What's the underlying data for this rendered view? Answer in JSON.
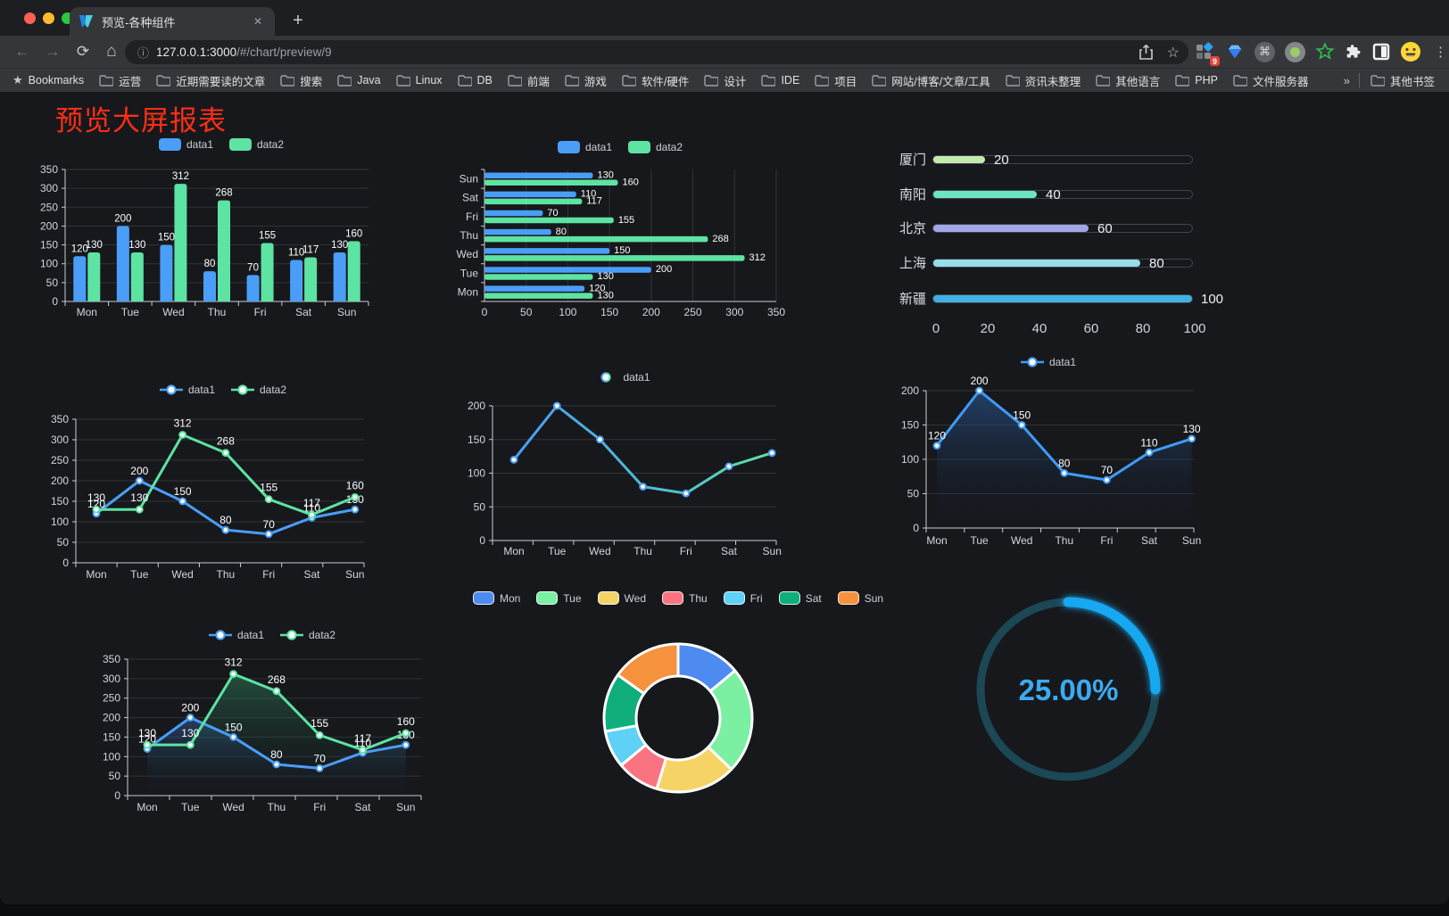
{
  "browser": {
    "tab_title": "预览-各种组件",
    "close_glyph": "✕",
    "newtab_glyph": "+",
    "back_glyph": "←",
    "forward_glyph": "→",
    "reload_glyph": "⟳",
    "home_glyph": "⌂",
    "info_glyph": "ⓘ",
    "star_glyph": "☆",
    "menu_glyph": "⋮",
    "cmd_glyph": "⌘",
    "url_host": "127.0.0.1:3000",
    "url_rest": "/#/chart/preview/9",
    "extension_badge": "9",
    "bookmarks_root_label": "Bookmarks",
    "bookmarks": [
      "运营",
      "近期需要读的文章",
      "搜索",
      "Java",
      "Linux",
      "DB",
      "前端",
      "游戏",
      "软件/硬件",
      "设计",
      "IDE",
      "项目",
      "网站/博客/文章/工具",
      "资讯未整理",
      "其他语言",
      "PHP",
      "文件服务器"
    ],
    "bookmarks_overflow": "»",
    "other_bookmarks": "其他书签"
  },
  "page": {
    "title": "预览大屏报表",
    "colors": {
      "title_red": "#fb2f16",
      "data1": "#4a9ef8",
      "data2": "#5de3a2",
      "axis": "#c9cdd4",
      "grid": "#303338",
      "tick_label": "#d2d6dd",
      "value_label": "#ffffff"
    }
  },
  "chart_data": [
    {
      "type": "bar",
      "orientation": "vertical",
      "categories": [
        "Mon",
        "Tue",
        "Wed",
        "Thu",
        "Fri",
        "Sat",
        "Sun"
      ],
      "series": [
        {
          "name": "data1",
          "color": "#4a9ef8",
          "values": [
            120,
            200,
            150,
            80,
            70,
            110,
            130
          ]
        },
        {
          "name": "data2",
          "color": "#5de3a2",
          "values": [
            130,
            130,
            312,
            268,
            155,
            117,
            160
          ]
        }
      ],
      "ylim": [
        0,
        350
      ],
      "ystep": 50,
      "grid": true,
      "legend_position": "top"
    },
    {
      "type": "bar",
      "orientation": "horizontal",
      "categories": [
        "Mon",
        "Tue",
        "Wed",
        "Thu",
        "Fri",
        "Sat",
        "Sun"
      ],
      "series": [
        {
          "name": "data1",
          "color": "#4a9ef8",
          "values": [
            120,
            200,
            150,
            80,
            70,
            110,
            130
          ]
        },
        {
          "name": "data2",
          "color": "#5de3a2",
          "values": [
            130,
            130,
            312,
            268,
            155,
            117,
            160
          ]
        }
      ],
      "xlim": [
        0,
        350
      ],
      "xstep": 50,
      "grid": true,
      "legend_position": "top"
    },
    {
      "type": "bar",
      "subtype": "progress",
      "categories": [
        "厦门",
        "南阳",
        "北京",
        "上海",
        "新疆"
      ],
      "values": [
        20,
        40,
        60,
        80,
        100
      ],
      "colors": [
        "#c4ebad",
        "#6be6c1",
        "#a0a7e6",
        "#96dee8",
        "#3fb1e3"
      ],
      "xlim": [
        0,
        100
      ],
      "xticks": [
        0,
        20,
        40,
        60,
        80,
        100
      ]
    },
    {
      "type": "line",
      "categories": [
        "Mon",
        "Tue",
        "Wed",
        "Thu",
        "Fri",
        "Sat",
        "Sun"
      ],
      "series": [
        {
          "name": "data1",
          "color": "#4a9ef8",
          "values": [
            120,
            200,
            150,
            80,
            70,
            110,
            130
          ]
        },
        {
          "name": "data2",
          "color": "#5de3a2",
          "values": [
            130,
            130,
            312,
            268,
            155,
            117,
            160
          ]
        }
      ],
      "ylim": [
        0,
        350
      ],
      "ystep": 50,
      "point_labels": true,
      "legend_position": "top"
    },
    {
      "type": "line",
      "categories": [
        "Mon",
        "Tue",
        "Wed",
        "Thu",
        "Fri",
        "Sat",
        "Sun"
      ],
      "series": [
        {
          "name": "data1",
          "gradient": [
            "#4a9ef8",
            "#5de3a2"
          ],
          "values": [
            120,
            200,
            150,
            80,
            70,
            110,
            130
          ]
        }
      ],
      "ylim": [
        0,
        200
      ],
      "ystep": 50,
      "point_labels": false,
      "legend_position": "top"
    },
    {
      "type": "area",
      "categories": [
        "Mon",
        "Tue",
        "Wed",
        "Thu",
        "Fri",
        "Sat",
        "Sun"
      ],
      "series": [
        {
          "name": "data1",
          "color": "#3f9bf7",
          "area": "rgba(47,105,179,0.50)",
          "values": [
            120,
            200,
            150,
            80,
            70,
            110,
            130
          ]
        }
      ],
      "ylim": [
        0,
        200
      ],
      "ystep": 50,
      "point_labels": true,
      "legend_position": "top"
    },
    {
      "type": "area",
      "categories": [
        "Mon",
        "Tue",
        "Wed",
        "Thu",
        "Fri",
        "Sat",
        "Sun"
      ],
      "series": [
        {
          "name": "data1",
          "color": "#4a9ef8",
          "area": "rgba(58,110,180,0.45)",
          "values": [
            120,
            200,
            150,
            80,
            70,
            110,
            130
          ]
        },
        {
          "name": "data2",
          "color": "#5de3a2",
          "area": "rgba(50,150,100,0.45)",
          "values": [
            130,
            130,
            312,
            268,
            155,
            117,
            160
          ]
        }
      ],
      "ylim": [
        0,
        350
      ],
      "ystep": 50,
      "point_labels": true,
      "legend_position": "top"
    },
    {
      "type": "pie",
      "subtype": "donut",
      "categories": [
        "Mon",
        "Tue",
        "Wed",
        "Thu",
        "Fri",
        "Sat",
        "Sun"
      ],
      "values": [
        120,
        200,
        150,
        80,
        70,
        110,
        130
      ],
      "colors": [
        "#4e8bf0",
        "#7befa2",
        "#f6d365",
        "#fa7381",
        "#5fd0f6",
        "#10ae7c",
        "#f6913d"
      ],
      "legend_position": "top"
    },
    {
      "type": "gauge",
      "value": 25,
      "label": "25.00%",
      "max": 100,
      "track_color": "#1c4754",
      "progress_color": "#17a8f1",
      "text_color": "#3caaf0"
    }
  ]
}
